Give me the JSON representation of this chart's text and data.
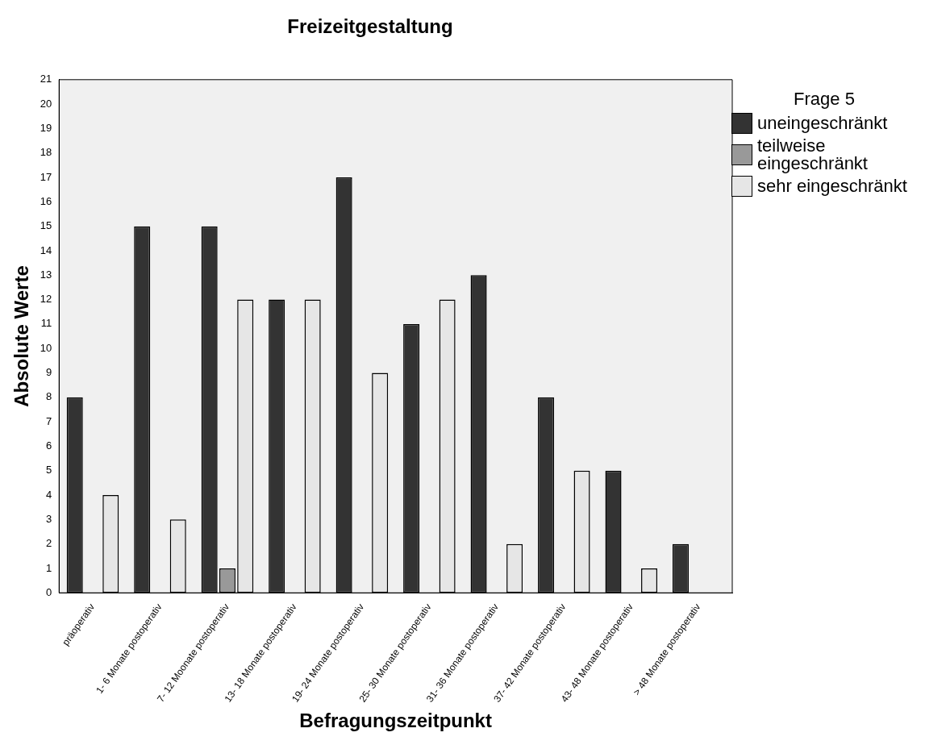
{
  "chart_data": {
    "type": "bar",
    "title": "Freizeitgestaltung",
    "xlabel": "Befragungszeitpunkt",
    "ylabel": "Absolute Werte",
    "legend_title": "Frage 5",
    "categories": [
      "präoperativ",
      "1- 6 Monate postoperativ",
      "7- 12 Moonate postoperativ",
      "13- 18 Monate postoperativ",
      "19- 24 Monate postoperativ",
      "25- 30 Monate postoperativ",
      "31- 36 Monate postoperativ",
      "37- 42 Monate postoperativ",
      "43- 48 Monate postoperativ",
      "> 48 Monate postoperativ"
    ],
    "series": [
      {
        "name": "uneingeschränkt",
        "color": "#333333",
        "values": [
          8,
          15,
          15,
          12,
          17,
          11,
          13,
          8,
          5,
          2
        ]
      },
      {
        "name": "teilweise eingeschränkt",
        "color": "#999999",
        "values": [
          0,
          0,
          1,
          0,
          0,
          0,
          0,
          0,
          0,
          0
        ]
      },
      {
        "name": "sehr eingeschränkt",
        "color": "#e6e6e6",
        "values": [
          4,
          3,
          12,
          12,
          9,
          12,
          2,
          5,
          1,
          0
        ]
      }
    ],
    "ylim": [
      0,
      21
    ],
    "yticks": [
      0,
      1,
      2,
      3,
      4,
      5,
      6,
      7,
      8,
      9,
      10,
      11,
      12,
      13,
      14,
      15,
      16,
      17,
      18,
      19,
      20,
      21
    ],
    "grid": false,
    "legend": "right"
  }
}
